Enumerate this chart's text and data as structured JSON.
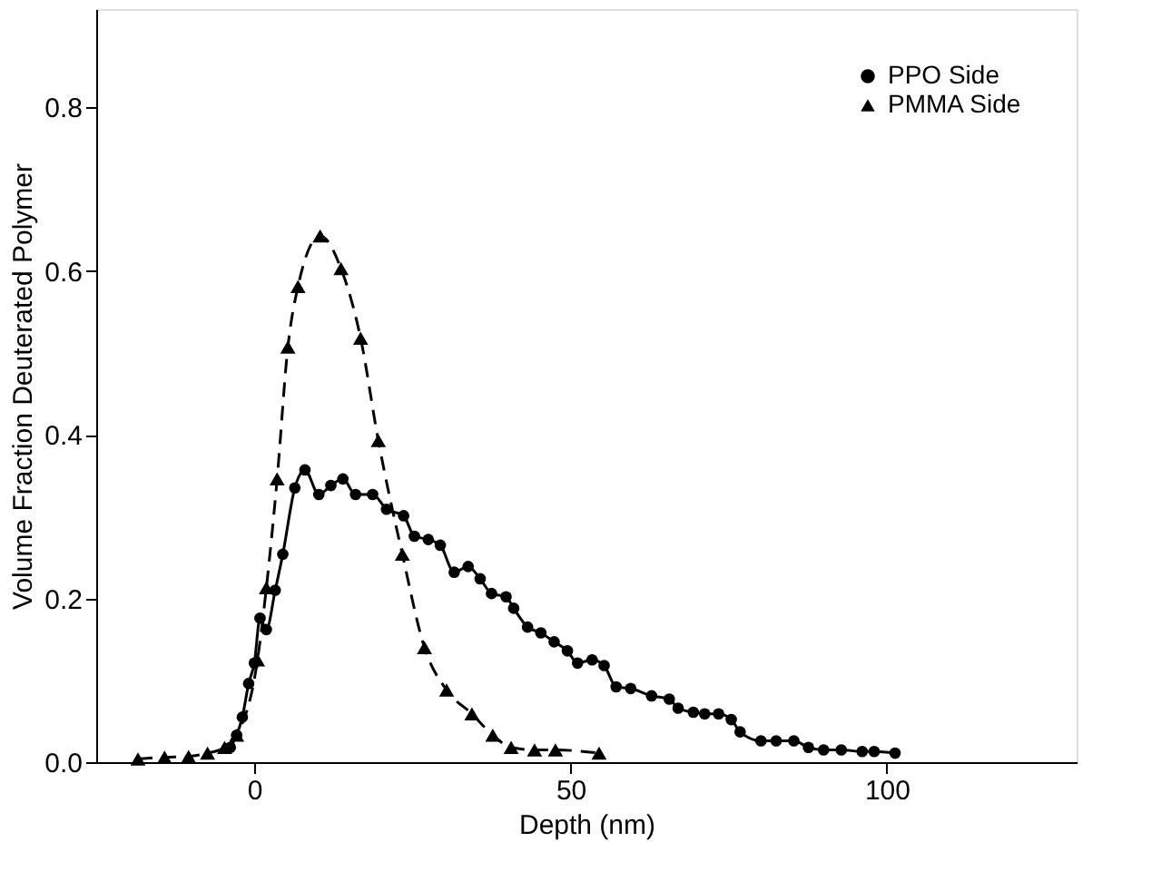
{
  "chart_data": {
    "type": "line",
    "xlabel": "Depth (nm)",
    "ylabel": "Volume Fraction Deuterated Polymer",
    "xlim": [
      -25,
      130
    ],
    "xticks": [
      0,
      50,
      100
    ],
    "ylim": [
      0,
      0.92
    ],
    "yticks": [
      {
        "value": 0,
        "label": "0.0"
      },
      0.2,
      0.4,
      0.6,
      0.8
    ],
    "grid": false,
    "legend": "top right",
    "series": [
      {
        "name": "PPO Side",
        "color": "#000000",
        "marker": "circle",
        "line_style": "solid",
        "x": [
          -3.8,
          -2.8,
          -1.9,
          -0.9,
          0,
          0.9,
          1.9,
          3.3,
          4.5,
          6.4,
          8.0,
          10.2,
          12.1,
          14.0,
          16.0,
          18.7,
          20.9,
          23.6,
          25.3,
          27.5,
          29.4,
          31.6,
          33.8,
          35.7,
          37.5,
          39.8,
          41.0,
          43.2,
          45.3,
          47.4,
          49.5,
          51.1,
          53.4,
          55.3,
          57.2,
          59.5,
          62.8,
          65.6,
          67.0,
          69.4,
          71.2,
          73.4,
          75.4,
          76.8,
          80.1,
          82.5,
          85.3,
          87.6,
          90.0,
          92.8,
          96.1,
          98.0,
          101.3
        ],
        "values": [
          0.018,
          0.033,
          0.055,
          0.096,
          0.121,
          0.176,
          0.162,
          0.21,
          0.254,
          0.335,
          0.357,
          0.327,
          0.338,
          0.346,
          0.327,
          0.327,
          0.309,
          0.301,
          0.276,
          0.272,
          0.265,
          0.232,
          0.239,
          0.224,
          0.206,
          0.202,
          0.188,
          0.165,
          0.158,
          0.147,
          0.136,
          0.121,
          0.125,
          0.118,
          0.092,
          0.09,
          0.081,
          0.077,
          0.066,
          0.061,
          0.059,
          0.059,
          0.052,
          0.037,
          0.026,
          0.026,
          0.026,
          0.018,
          0.015,
          0.015,
          0.013,
          0.013,
          0.011
        ]
      },
      {
        "name": "PMMA Side",
        "color": "#000000",
        "marker": "triangle",
        "line_style": "dashed",
        "x": [
          -18.4,
          -14.2,
          -10.4,
          -7.4,
          -4.7,
          -2.8,
          0.5,
          1.9,
          3.6,
          5.3,
          6.9,
          10.4,
          13.7,
          16.8,
          19.6,
          23.4,
          26.9,
          30.4,
          34.4,
          37.7,
          40.6,
          44.3,
          47.6,
          54.5
        ],
        "values": [
          0.004,
          0.006,
          0.007,
          0.011,
          0.018,
          0.033,
          0.125,
          0.213,
          0.346,
          0.507,
          0.581,
          0.643,
          0.603,
          0.518,
          0.393,
          0.254,
          0.14,
          0.088,
          0.059,
          0.033,
          0.018,
          0.015,
          0.015,
          0.011
        ]
      }
    ]
  }
}
